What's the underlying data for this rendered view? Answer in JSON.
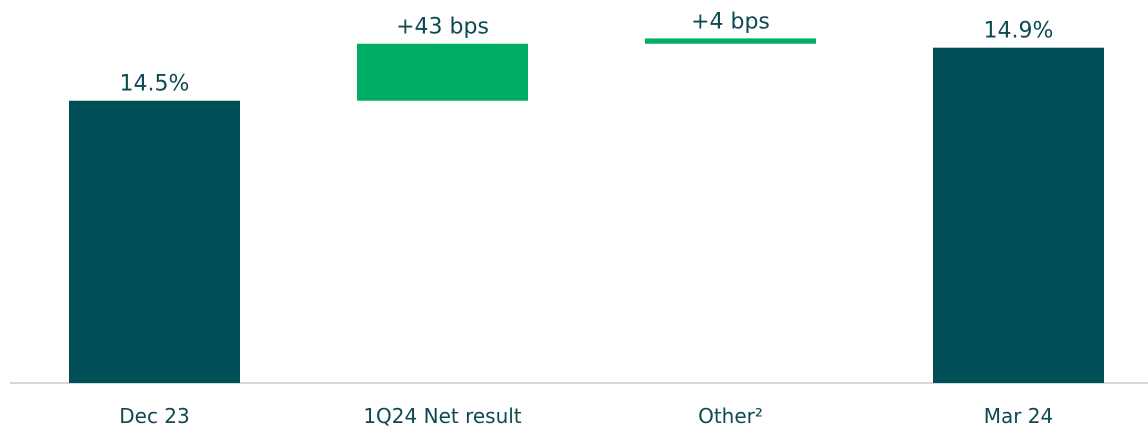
{
  "chart_data": {
    "type": "waterfall",
    "categories": [
      "Dec 23",
      "1Q24 Net result",
      "Other²",
      "Mar 24"
    ],
    "values": [
      14.5,
      0.43,
      0.04,
      14.9
    ],
    "value_labels": [
      "14.5%",
      "+43 bps",
      "+4 bps",
      "14.9%"
    ],
    "measures": [
      "absolute",
      "relative",
      "relative",
      "total"
    ],
    "colors": {
      "absolute": "#004f57",
      "relative": "#00ad65",
      "total": "#004f57"
    },
    "ylim": [
      12.37,
      15.26
    ]
  }
}
